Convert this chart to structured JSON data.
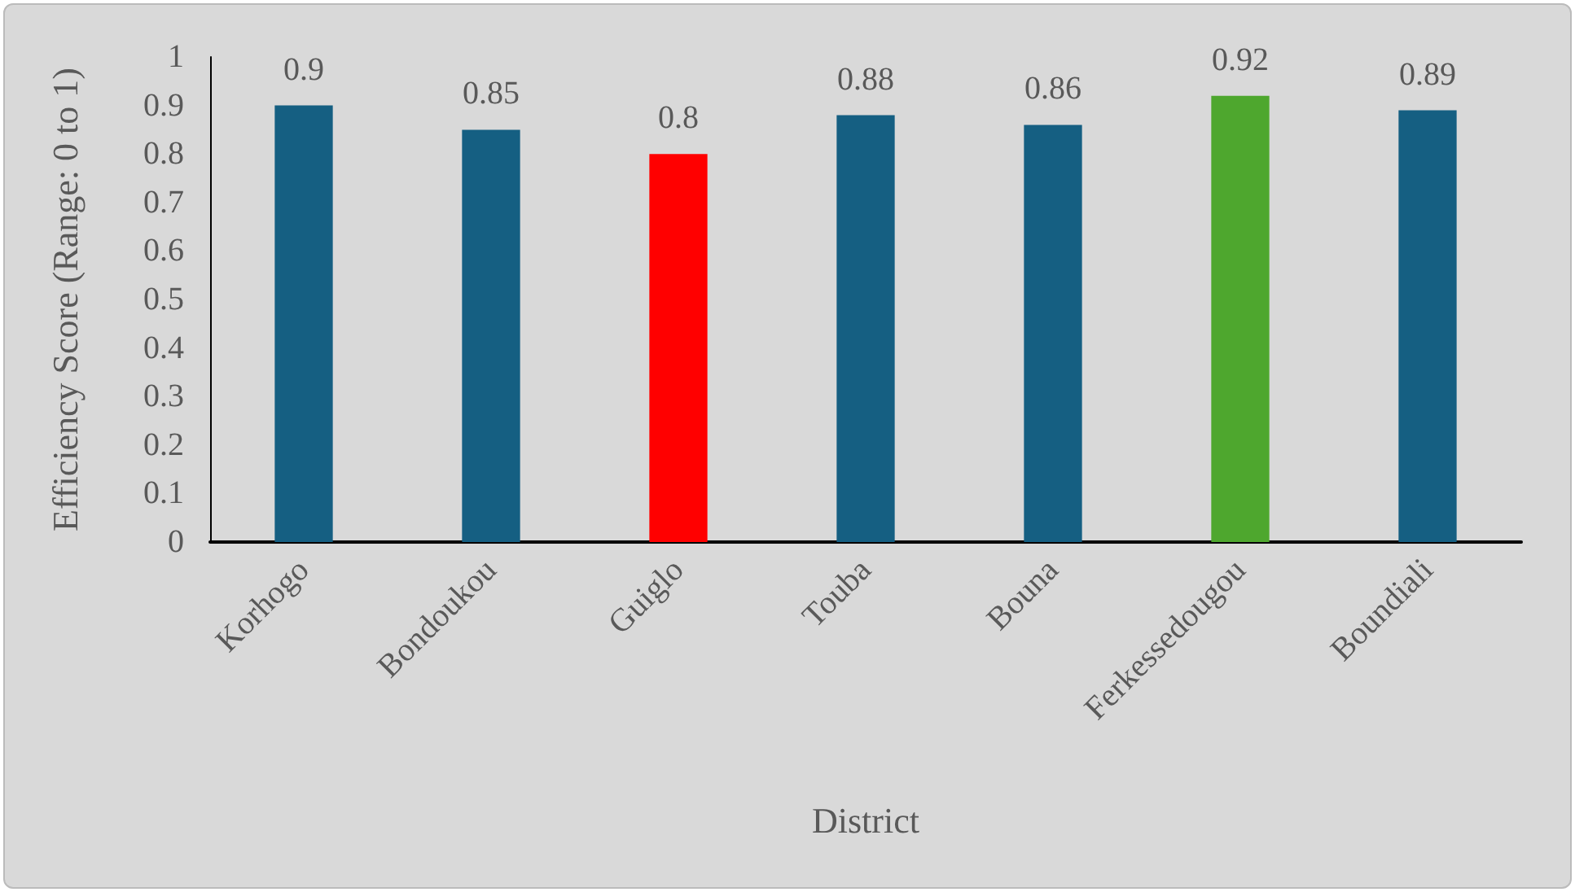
{
  "chart_data": {
    "type": "bar",
    "xlabel": "District",
    "ylabel": "Efficiency Score (Range: 0 to 1)",
    "categories": [
      "Korhogo",
      "Bondoukou",
      "Guiglo",
      "Touba",
      "Bouna",
      "Ferkessedougou",
      "Boundiali"
    ],
    "values": [
      0.9,
      0.85,
      0.8,
      0.88,
      0.86,
      0.92,
      0.89
    ],
    "colors": [
      "#155f82",
      "#155f82",
      "#ff0000",
      "#155f82",
      "#155f82",
      "#4ea72e",
      "#155f82"
    ],
    "ylim": [
      0,
      1
    ],
    "yticks": [
      0,
      0.1,
      0.2,
      0.3,
      0.4,
      0.5,
      0.6,
      0.7,
      0.8,
      0.9,
      1
    ],
    "grid": false,
    "data_labels": true
  }
}
